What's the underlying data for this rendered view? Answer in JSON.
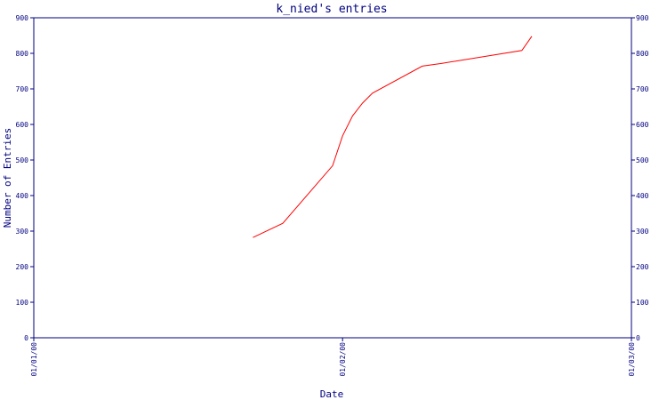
{
  "chart_data": {
    "type": "line",
    "title": "k_nied's entries",
    "xlabel": "Date",
    "ylabel": "Number of Entries",
    "ylim": [
      0,
      900
    ],
    "y_ticks": [
      "0",
      "100",
      "200",
      "300",
      "400",
      "500",
      "600",
      "700",
      "800",
      "900"
    ],
    "x_ticks": [
      "01/01/00",
      "01/02/00",
      "01/03/00"
    ],
    "x_tick_dates": [
      "2000-01-01",
      "2000-02-01",
      "2000-03-01"
    ],
    "grid": false,
    "line_color": "#ff0000",
    "axis_color": "#000080",
    "series": [
      {
        "values": [
          {
            "x": "2000-01-23",
            "y": 282
          },
          {
            "x": "2000-01-26",
            "y": 322
          },
          {
            "x": "2000-01-31",
            "y": 484
          },
          {
            "x": "2000-02-01",
            "y": 568
          },
          {
            "x": "2000-02-02",
            "y": 624
          },
          {
            "x": "2000-02-03",
            "y": 660
          },
          {
            "x": "2000-02-04",
            "y": 688
          },
          {
            "x": "2000-02-09",
            "y": 764
          },
          {
            "x": "2000-02-11",
            "y": 772
          },
          {
            "x": "2000-02-19",
            "y": 808
          },
          {
            "x": "2000-02-20",
            "y": 848
          }
        ]
      }
    ]
  }
}
